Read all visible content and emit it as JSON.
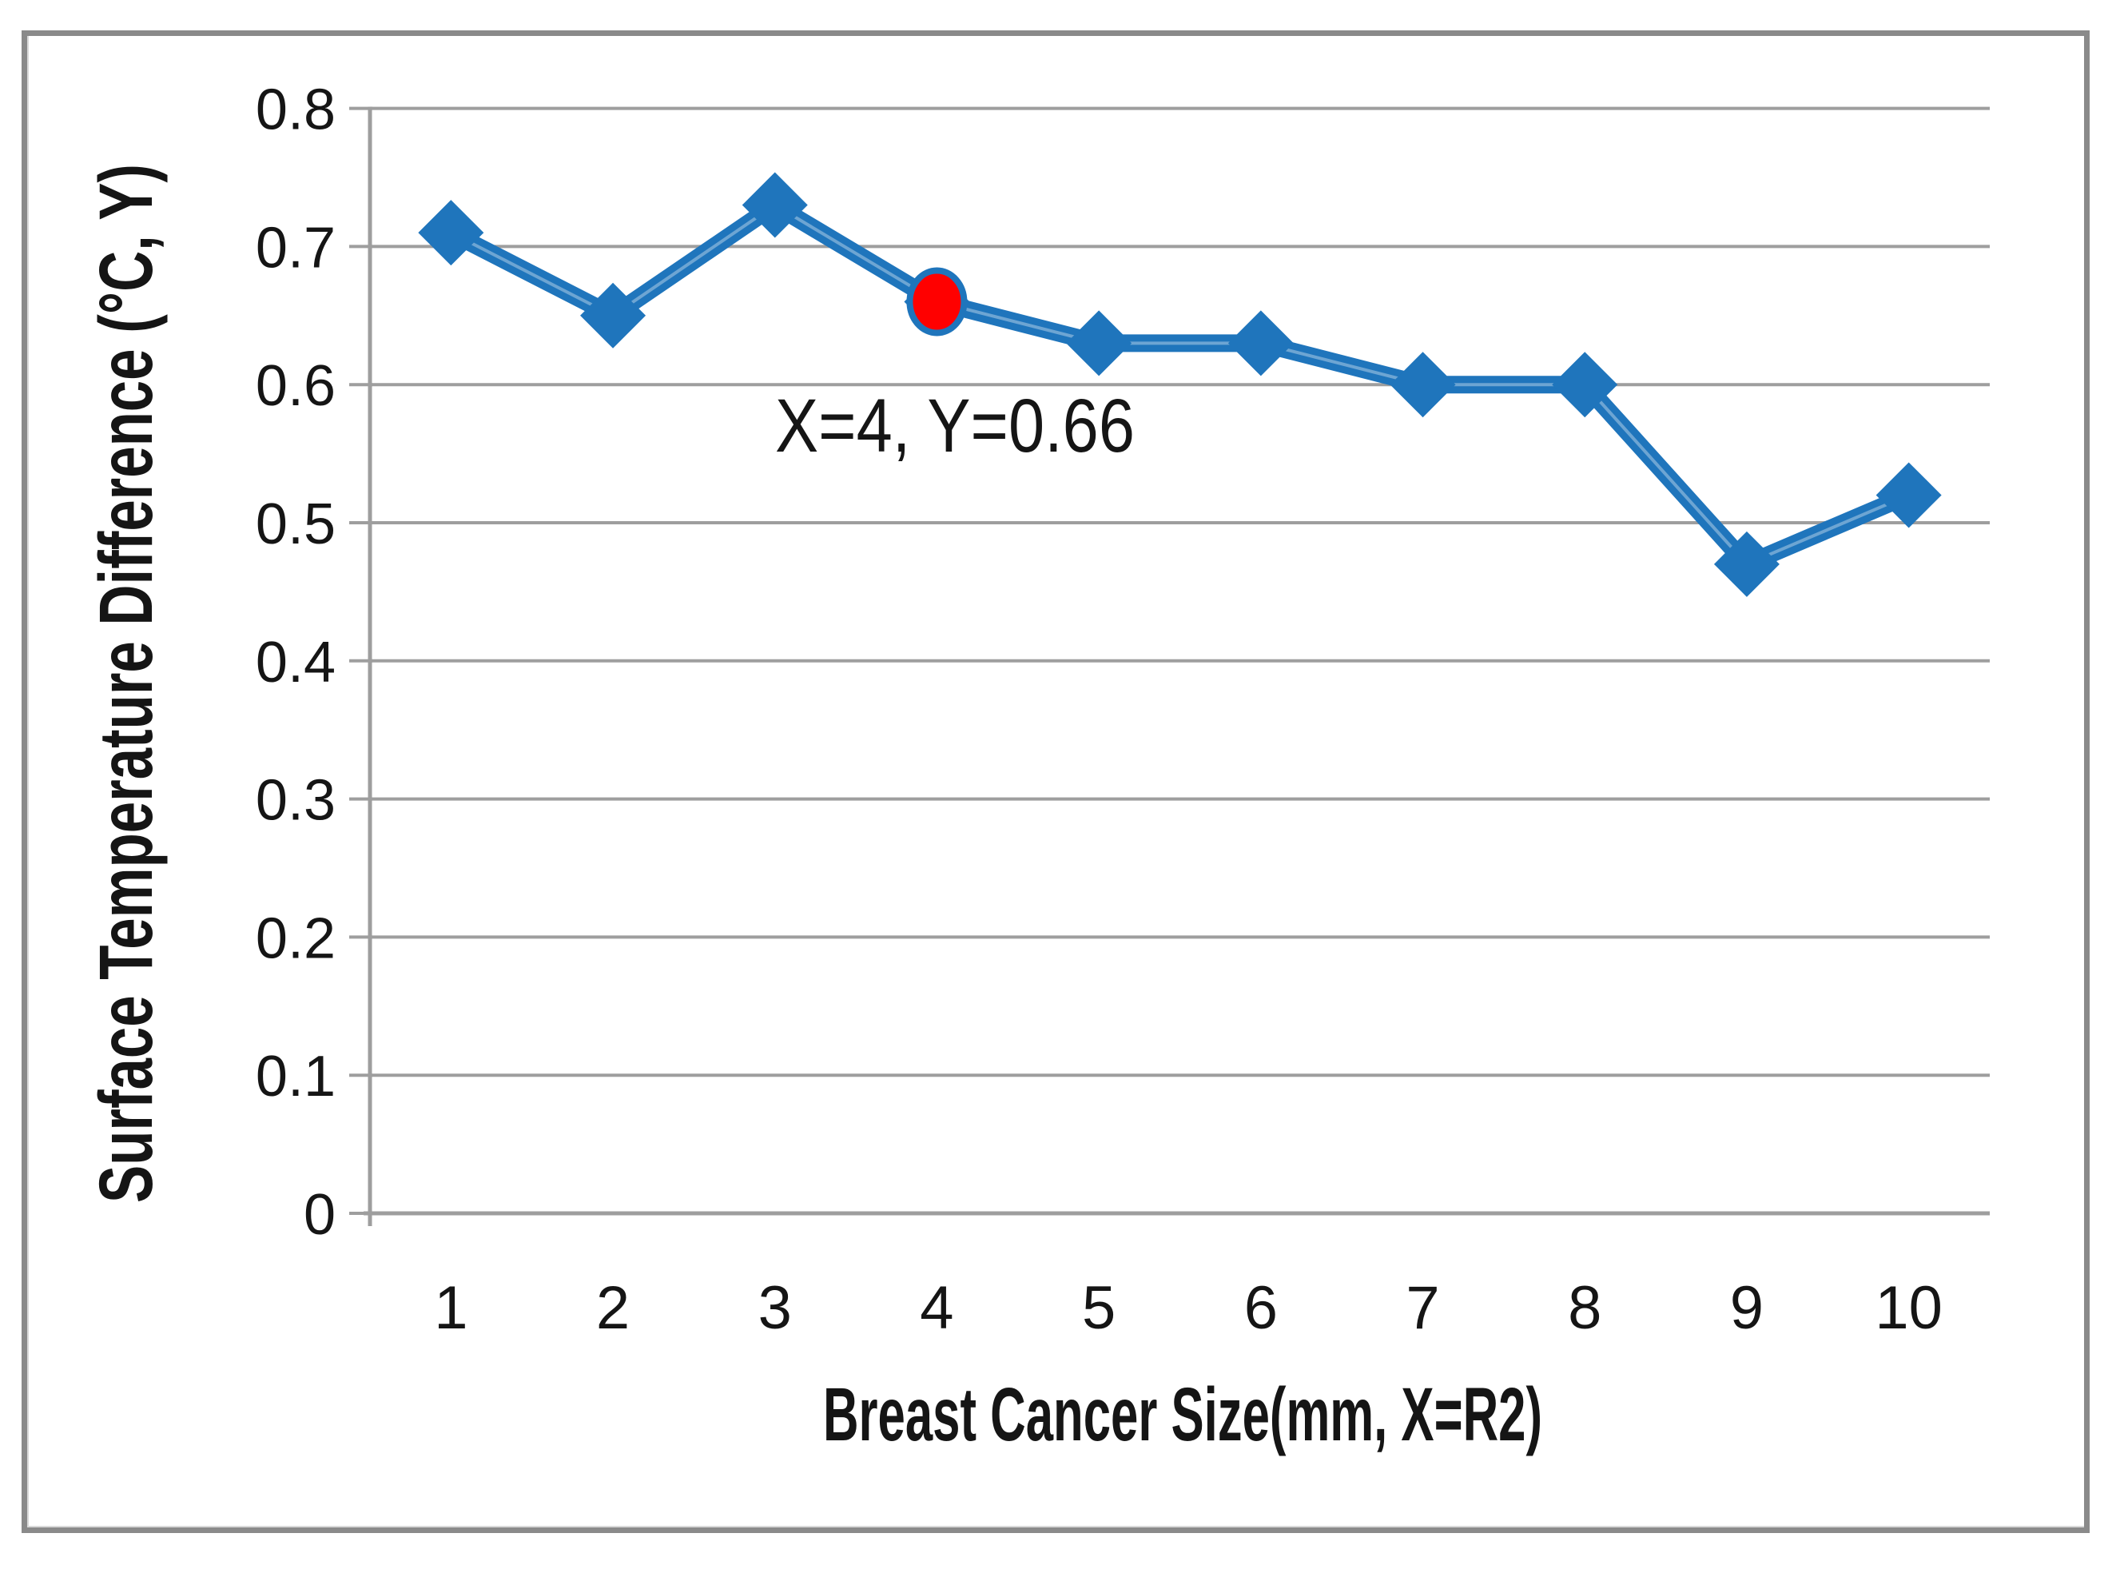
{
  "figure": {
    "background": "#FFFFFF",
    "frame_color": "#8A8A8A"
  },
  "chart_data": {
    "type": "line",
    "title": "",
    "xlabel": "Breast Cancer Size(mm, X=R2)",
    "ylabel": "Surface Temperature Difference (°C, Y)",
    "x": [
      1,
      2,
      3,
      4,
      5,
      6,
      7,
      8,
      9,
      10
    ],
    "x_tick_labels": [
      "1",
      "2",
      "3",
      "4",
      "5",
      "6",
      "7",
      "8",
      "9",
      "10"
    ],
    "series": [
      {
        "name": "surface-temperature-difference",
        "values": [
          0.71,
          0.65,
          0.73,
          0.66,
          0.63,
          0.63,
          0.6,
          0.6,
          0.47,
          0.52
        ],
        "color": "#1F75BC",
        "marker": "diamond"
      }
    ],
    "ylim": [
      0,
      0.8
    ],
    "y_tick_labels": [
      "0",
      "0.1",
      "0.2",
      "0.3",
      "0.4",
      "0.5",
      "0.6",
      "0.7",
      "0.8"
    ],
    "grid": "horizontal",
    "legend": "none",
    "annotation": {
      "label": "X=4, Y=0.66",
      "x": 4,
      "y": 0.66,
      "marker_color": "#FF0000"
    },
    "colors": {
      "gridline": "#9E9E9E",
      "axis": "#9E9E9E",
      "text": "#151515"
    }
  }
}
